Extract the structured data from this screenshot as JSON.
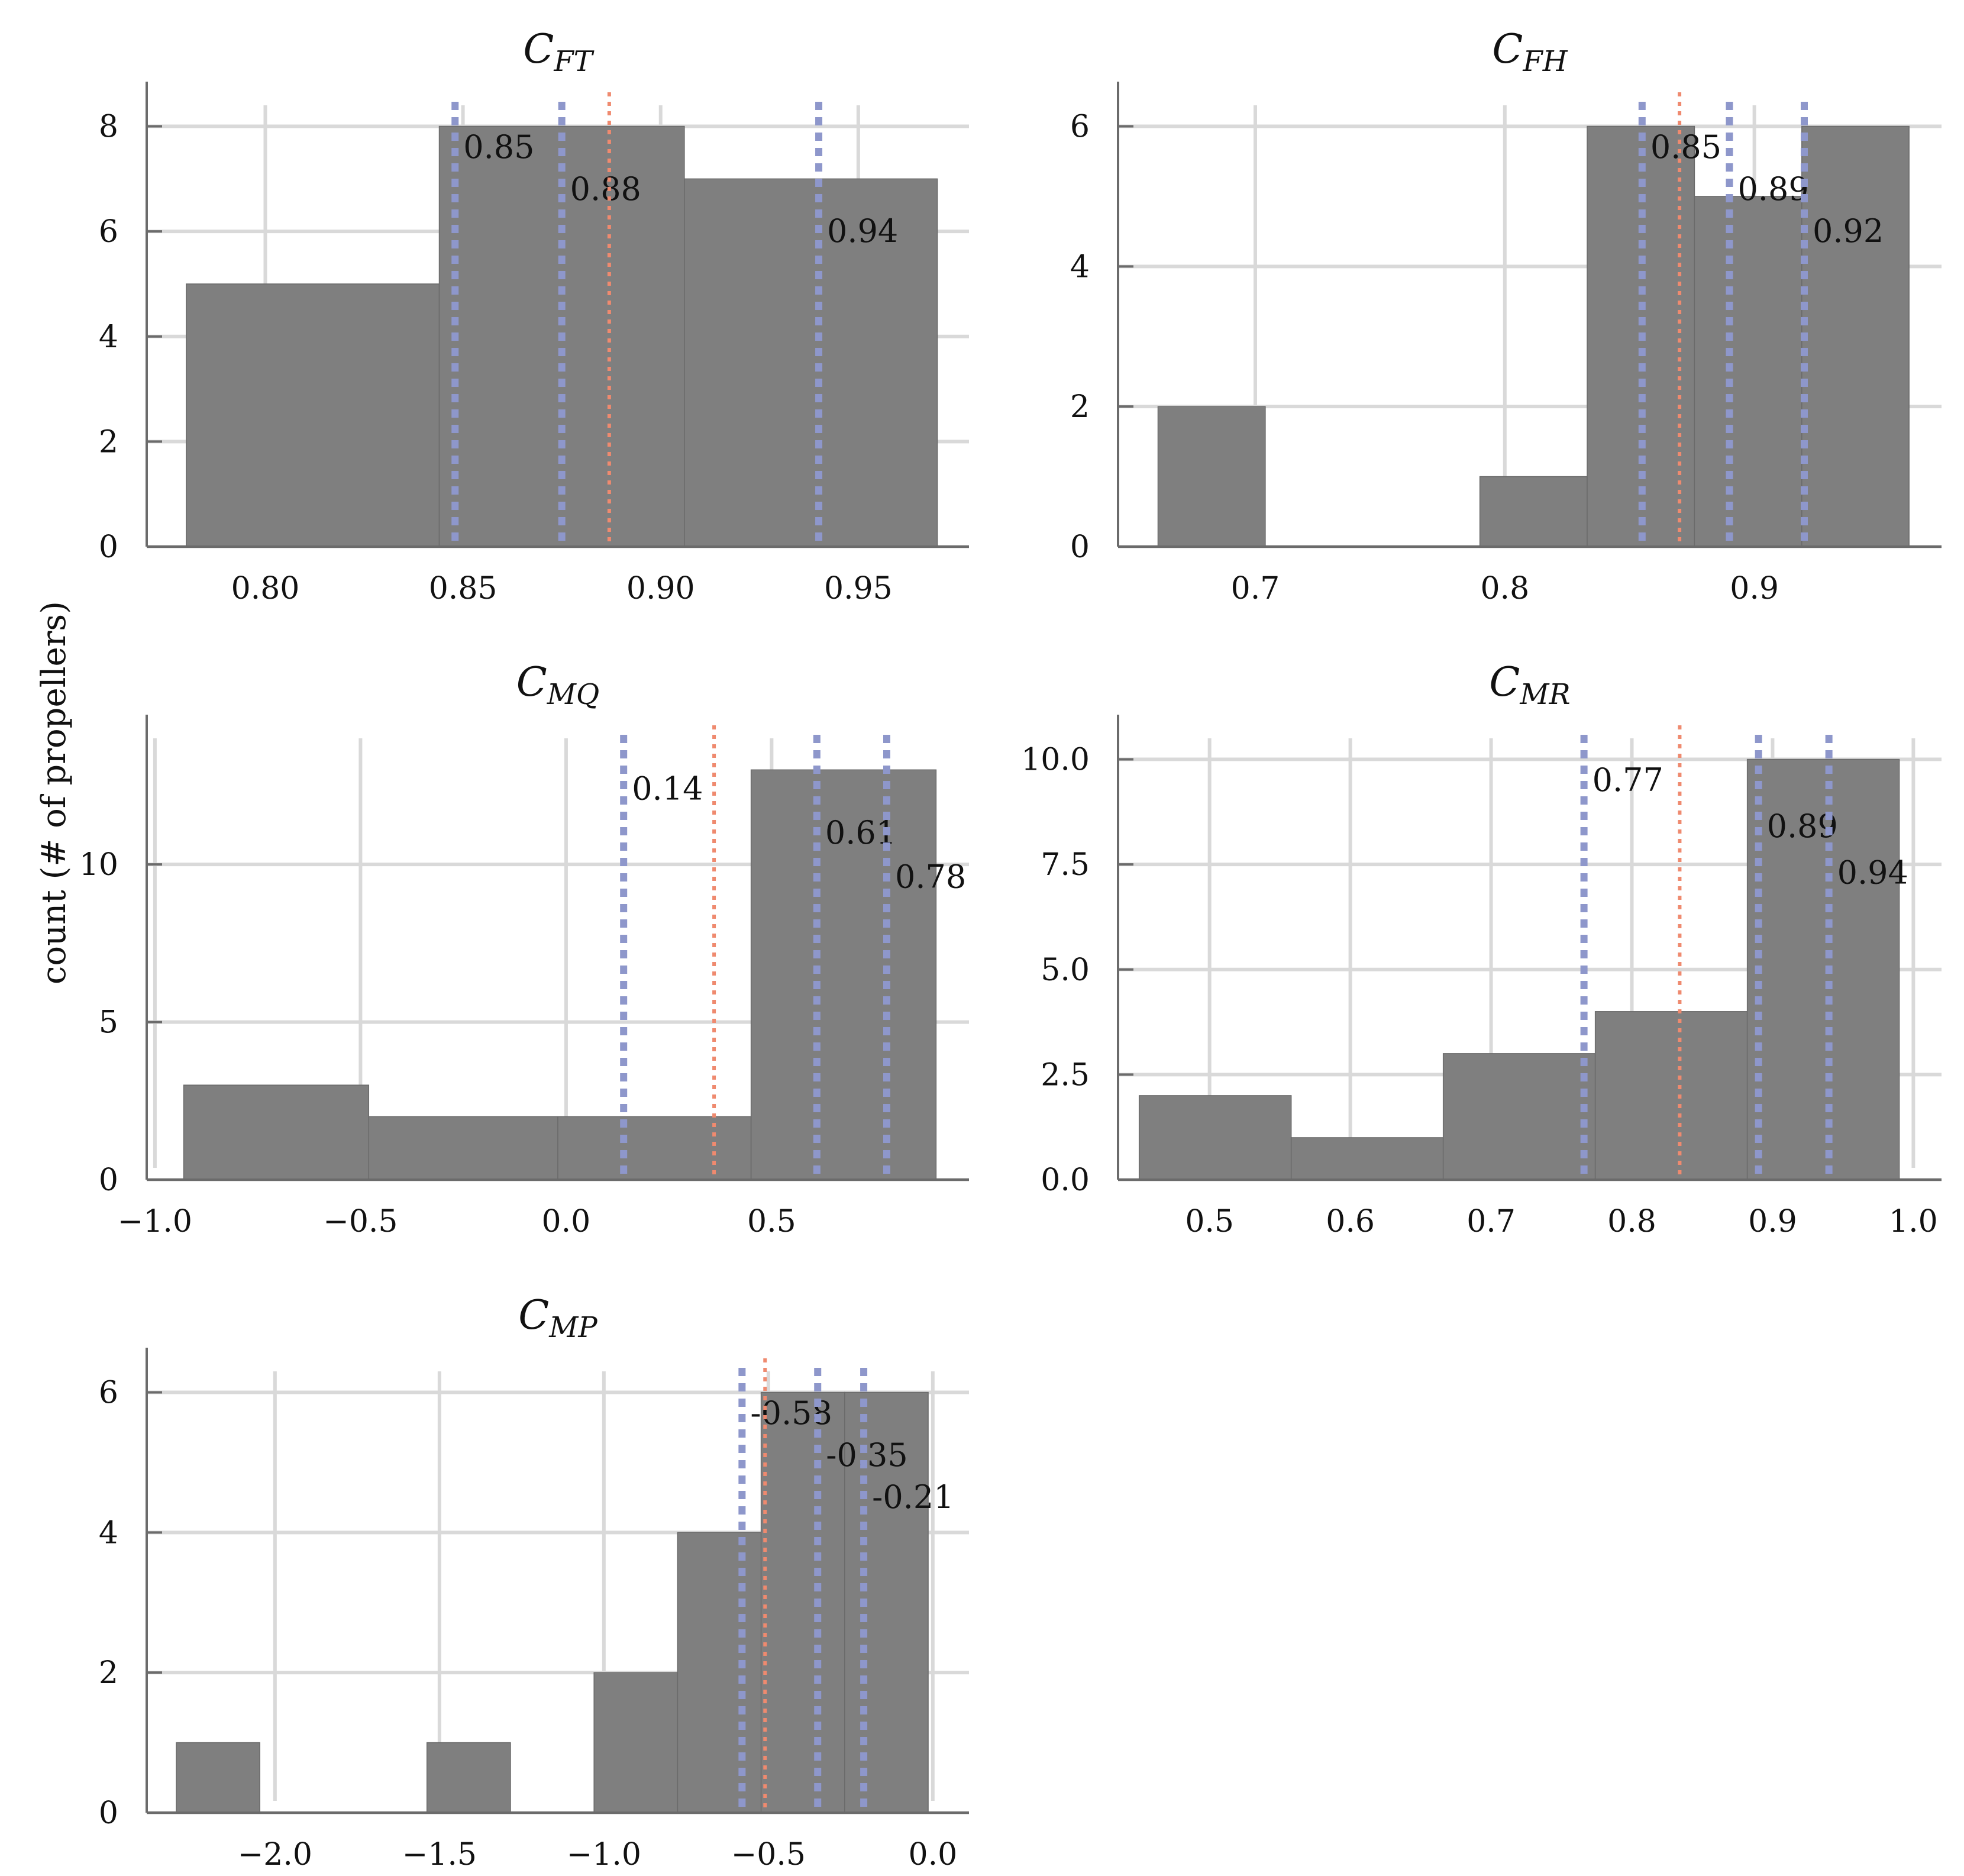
{
  "figure": {
    "ylabel": "count (# of propellers)"
  },
  "chart_data": [
    {
      "type": "bar",
      "title": "C",
      "title_sub": "FT",
      "xlim": [
        0.77,
        0.978
      ],
      "ylim": [
        0,
        8.4
      ],
      "xticks": [
        0.8,
        0.85,
        0.9,
        0.95
      ],
      "xtick_labels": [
        "0.80",
        "0.85",
        "0.90",
        "0.95"
      ],
      "yticks": [
        0,
        2,
        4,
        6,
        8
      ],
      "ytick_labels": [
        "0",
        "2",
        "4",
        "6",
        "8"
      ],
      "bins": [
        [
          0.78,
          0.844
        ],
        [
          0.844,
          0.906
        ],
        [
          0.906,
          0.97
        ]
      ],
      "counts": [
        5,
        8,
        7
      ],
      "mean": 0.887,
      "quantiles": [
        {
          "value": 0.848,
          "label": "0.85",
          "label_y": 7.6
        },
        {
          "value": 0.875,
          "label": "0.88",
          "label_y": 6.8
        },
        {
          "value": 0.94,
          "label": "0.94",
          "label_y": 6.0
        }
      ]
    },
    {
      "type": "bar",
      "title": "C",
      "title_sub": "FH",
      "xlim": [
        0.645,
        0.975
      ],
      "ylim": [
        0,
        6.3
      ],
      "xticks": [
        0.7,
        0.8,
        0.9
      ],
      "xtick_labels": [
        "0.7",
        "0.8",
        "0.9"
      ],
      "yticks": [
        0,
        2,
        4,
        6
      ],
      "ytick_labels": [
        "0",
        "2",
        "4",
        "6"
      ],
      "bins": [
        [
          0.661,
          0.704
        ],
        [
          0.704,
          0.747
        ],
        [
          0.747,
          0.79
        ],
        [
          0.79,
          0.833
        ],
        [
          0.833,
          0.876
        ],
        [
          0.876,
          0.919
        ],
        [
          0.919,
          0.962
        ]
      ],
      "counts": [
        2,
        0,
        0,
        1,
        6,
        5,
        6
      ],
      "mean": 0.87,
      "quantiles": [
        {
          "value": 0.855,
          "label": "0.85",
          "label_y": 5.7
        },
        {
          "value": 0.89,
          "label": "0.89",
          "label_y": 5.1
        },
        {
          "value": 0.92,
          "label": "0.92",
          "label_y": 4.5
        }
      ]
    },
    {
      "type": "bar",
      "title": "C",
      "title_sub": "MQ",
      "xlim": [
        -1.02,
        0.98
      ],
      "ylim": [
        0,
        14
      ],
      "xticks": [
        -1.0,
        -0.5,
        0.0,
        0.5
      ],
      "xtick_labels": [
        "−1.0",
        "−0.5",
        "0.0",
        "0.5"
      ],
      "yticks": [
        0,
        5,
        10
      ],
      "ytick_labels": [
        "0",
        "5",
        "10"
      ],
      "bins": [
        [
          -0.93,
          -0.48
        ],
        [
          -0.48,
          -0.02
        ],
        [
          -0.02,
          0.45
        ],
        [
          0.45,
          0.9
        ]
      ],
      "counts": [
        3,
        2,
        2,
        13
      ],
      "mean": 0.36,
      "quantiles": [
        {
          "value": 0.14,
          "label": "0.14",
          "label_y": 12.4
        },
        {
          "value": 0.61,
          "label": "0.61",
          "label_y": 11.0
        },
        {
          "value": 0.78,
          "label": "0.78",
          "label_y": 9.6
        }
      ]
    },
    {
      "type": "bar",
      "title": "C",
      "title_sub": "MR",
      "xlim": [
        0.435,
        1.02
      ],
      "ylim": [
        0,
        10.5
      ],
      "xticks": [
        0.5,
        0.6,
        0.7,
        0.8,
        0.9,
        1.0
      ],
      "xtick_labels": [
        "0.5",
        "0.6",
        "0.7",
        "0.8",
        "0.9",
        "1.0"
      ],
      "yticks": [
        0.0,
        2.5,
        5.0,
        7.5,
        10.0
      ],
      "ytick_labels": [
        "0.0",
        "2.5",
        "5.0",
        "7.5",
        "10.0"
      ],
      "bins": [
        [
          0.45,
          0.558
        ],
        [
          0.558,
          0.666
        ],
        [
          0.666,
          0.774
        ],
        [
          0.774,
          0.882
        ],
        [
          0.882,
          0.99
        ]
      ],
      "counts": [
        2,
        1,
        3,
        4,
        10
      ],
      "mean": 0.834,
      "quantiles": [
        {
          "value": 0.766,
          "label": "0.77",
          "label_y": 9.5
        },
        {
          "value": 0.89,
          "label": "0.89",
          "label_y": 8.4
        },
        {
          "value": 0.94,
          "label": "0.94",
          "label_y": 7.3
        }
      ]
    },
    {
      "type": "bar",
      "title": "C",
      "title_sub": "MP",
      "xlim": [
        -2.39,
        0.11
      ],
      "ylim": [
        0,
        6.3
      ],
      "xticks": [
        -2.0,
        -1.5,
        -1.0,
        -0.5,
        0.0
      ],
      "xtick_labels": [
        "−2.0",
        "−1.5",
        "−1.0",
        "−0.5",
        "0.0"
      ],
      "yticks": [
        0,
        2,
        4,
        6
      ],
      "ytick_labels": [
        "0",
        "2",
        "4",
        "6"
      ],
      "bins": [
        [
          -2.3,
          -2.046
        ],
        [
          -2.046,
          -1.792
        ],
        [
          -1.792,
          -1.538
        ],
        [
          -1.538,
          -1.284
        ],
        [
          -1.284,
          -1.03
        ],
        [
          -1.03,
          -0.776
        ],
        [
          -0.776,
          -0.522
        ],
        [
          -0.522,
          -0.268
        ],
        [
          -0.268,
          -0.014
        ]
      ],
      "counts": [
        1,
        0,
        0,
        1,
        0,
        2,
        4,
        6,
        6
      ],
      "mean": -0.51,
      "quantiles": [
        {
          "value": -0.58,
          "label": "-0.58",
          "label_y": 5.7
        },
        {
          "value": -0.35,
          "label": "-0.35",
          "label_y": 5.1
        },
        {
          "value": -0.21,
          "label": "-0.21",
          "label_y": 4.5
        }
      ]
    }
  ]
}
